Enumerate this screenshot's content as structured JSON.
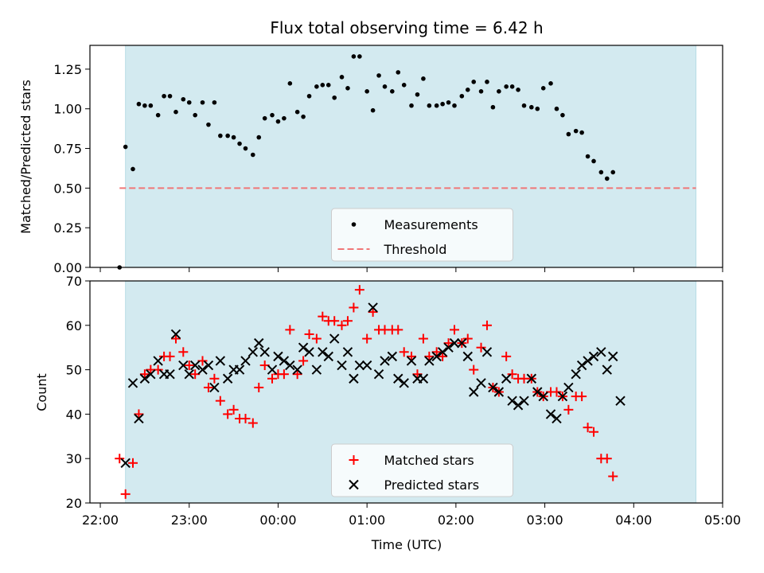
{
  "chart_data": [
    {
      "type": "scatter",
      "title": "Flux total observing time = 6.42 h",
      "xlabel": "",
      "ylabel": "Matched/Predicted stars",
      "xlim": [
        "21:53",
        "05:00"
      ],
      "ylim": [
        0,
        1.4
      ],
      "yticks": [
        0.0,
        0.25,
        0.5,
        0.75,
        1.0,
        1.25
      ],
      "ytick_labels": [
        "0.00",
        "0.25",
        "0.50",
        "0.75",
        "1.00",
        "1.25"
      ],
      "shaded_span": [
        "22:17",
        "04:42"
      ],
      "shaded_color": "#d3eaf0",
      "legend": {
        "placement": "lower-center",
        "entries": [
          "Measurements",
          "Threshold"
        ]
      },
      "threshold": {
        "name": "Threshold",
        "y": 0.5,
        "x_start": "22:13",
        "x_end": "04:42",
        "color": "#f07777"
      },
      "series": [
        {
          "name": "Measurements",
          "marker": "dot",
          "color": "#000000",
          "points": [
            [
              "22:13",
              0.0
            ],
            [
              "22:17",
              0.76
            ],
            [
              "22:22",
              0.62
            ],
            [
              "22:26",
              1.03
            ],
            [
              "22:30",
              1.02
            ],
            [
              "22:34",
              1.02
            ],
            [
              "22:39",
              0.96
            ],
            [
              "22:43",
              1.08
            ],
            [
              "22:47",
              1.08
            ],
            [
              "22:51",
              0.98
            ],
            [
              "22:56",
              1.06
            ],
            [
              "23:00",
              1.04
            ],
            [
              "23:04",
              0.96
            ],
            [
              "23:09",
              1.04
            ],
            [
              "23:13",
              0.9
            ],
            [
              "23:17",
              1.04
            ],
            [
              "23:21",
              0.83
            ],
            [
              "23:26",
              0.83
            ],
            [
              "23:30",
              0.82
            ],
            [
              "23:34",
              0.78
            ],
            [
              "23:38",
              0.75
            ],
            [
              "23:43",
              0.71
            ],
            [
              "23:47",
              0.82
            ],
            [
              "23:51",
              0.94
            ],
            [
              "23:56",
              0.96
            ],
            [
              "00:00",
              0.92
            ],
            [
              "00:04",
              0.94
            ],
            [
              "00:08",
              1.16
            ],
            [
              "00:13",
              0.98
            ],
            [
              "00:17",
              0.95
            ],
            [
              "00:21",
              1.08
            ],
            [
              "00:26",
              1.14
            ],
            [
              "00:30",
              1.15
            ],
            [
              "00:34",
              1.15
            ],
            [
              "00:38",
              1.07
            ],
            [
              "00:43",
              1.2
            ],
            [
              "00:47",
              1.13
            ],
            [
              "00:51",
              1.33
            ],
            [
              "00:55",
              1.33
            ],
            [
              "01:00",
              1.11
            ],
            [
              "01:04",
              0.99
            ],
            [
              "01:08",
              1.21
            ],
            [
              "01:12",
              1.14
            ],
            [
              "01:17",
              1.11
            ],
            [
              "01:21",
              1.23
            ],
            [
              "01:25",
              1.15
            ],
            [
              "01:30",
              1.02
            ],
            [
              "01:34",
              1.09
            ],
            [
              "01:38",
              1.19
            ],
            [
              "01:42",
              1.02
            ],
            [
              "01:47",
              1.02
            ],
            [
              "01:51",
              1.03
            ],
            [
              "01:55",
              1.04
            ],
            [
              "01:59",
              1.02
            ],
            [
              "02:04",
              1.08
            ],
            [
              "02:08",
              1.12
            ],
            [
              "02:12",
              1.17
            ],
            [
              "02:17",
              1.11
            ],
            [
              "02:21",
              1.17
            ],
            [
              "02:25",
              1.01
            ],
            [
              "02:29",
              1.11
            ],
            [
              "02:34",
              1.14
            ],
            [
              "02:38",
              1.14
            ],
            [
              "02:42",
              1.12
            ],
            [
              "02:46",
              1.02
            ],
            [
              "02:51",
              1.01
            ],
            [
              "02:55",
              1.0
            ],
            [
              "02:59",
              1.13
            ],
            [
              "03:04",
              1.16
            ],
            [
              "03:08",
              1.0
            ],
            [
              "03:12",
              0.96
            ],
            [
              "03:16",
              0.84
            ],
            [
              "03:21",
              0.86
            ],
            [
              "03:25",
              0.85
            ],
            [
              "03:29",
              0.7
            ],
            [
              "03:33",
              0.67
            ],
            [
              "03:38",
              0.6
            ],
            [
              "03:42",
              0.56
            ],
            [
              "03:46",
              0.6
            ]
          ]
        }
      ]
    },
    {
      "type": "scatter",
      "title": "",
      "xlabel": "Time (UTC)",
      "ylabel": "Count",
      "xlim": [
        "21:53",
        "05:00"
      ],
      "ylim": [
        20,
        70
      ],
      "yticks": [
        20,
        30,
        40,
        50,
        60,
        70
      ],
      "xticks": [
        "22:00",
        "23:00",
        "00:00",
        "01:00",
        "02:00",
        "03:00",
        "04:00",
        "05:00"
      ],
      "shaded_span": [
        "22:17",
        "04:42"
      ],
      "shaded_color": "#d3eaf0",
      "legend": {
        "placement": "lower-center",
        "entries": [
          "Matched stars",
          "Predicted stars"
        ]
      },
      "series": [
        {
          "name": "Matched stars",
          "marker": "plus",
          "color": "#ff0000",
          "points": [
            [
              "22:13",
              30
            ],
            [
              "22:17",
              22
            ],
            [
              "22:22",
              29
            ],
            [
              "22:26",
              40
            ],
            [
              "22:30",
              49
            ],
            [
              "22:34",
              50
            ],
            [
              "22:39",
              50
            ],
            [
              "22:43",
              53
            ],
            [
              "22:47",
              53
            ],
            [
              "22:51",
              57
            ],
            [
              "22:56",
              54
            ],
            [
              "23:00",
              51
            ],
            [
              "23:04",
              49
            ],
            [
              "23:09",
              52
            ],
            [
              "23:13",
              46
            ],
            [
              "23:17",
              48
            ],
            [
              "23:21",
              43
            ],
            [
              "23:26",
              40
            ],
            [
              "23:30",
              41
            ],
            [
              "23:34",
              39
            ],
            [
              "23:38",
              39
            ],
            [
              "23:43",
              38
            ],
            [
              "23:47",
              46
            ],
            [
              "23:51",
              51
            ],
            [
              "23:56",
              48
            ],
            [
              "00:00",
              49
            ],
            [
              "00:04",
              49
            ],
            [
              "00:08",
              59
            ],
            [
              "00:13",
              49
            ],
            [
              "00:17",
              52
            ],
            [
              "00:21",
              58
            ],
            [
              "00:26",
              57
            ],
            [
              "00:30",
              62
            ],
            [
              "00:34",
              61
            ],
            [
              "00:38",
              61
            ],
            [
              "00:43",
              60
            ],
            [
              "00:47",
              61
            ],
            [
              "00:51",
              64
            ],
            [
              "00:55",
              68
            ],
            [
              "01:00",
              57
            ],
            [
              "01:04",
              63
            ],
            [
              "01:08",
              59
            ],
            [
              "01:12",
              59
            ],
            [
              "01:17",
              59
            ],
            [
              "01:21",
              59
            ],
            [
              "01:25",
              54
            ],
            [
              "01:30",
              53
            ],
            [
              "01:34",
              49
            ],
            [
              "01:38",
              57
            ],
            [
              "01:42",
              53
            ],
            [
              "01:47",
              54
            ],
            [
              "01:51",
              53
            ],
            [
              "01:55",
              56
            ],
            [
              "01:59",
              59
            ],
            [
              "02:04",
              56
            ],
            [
              "02:08",
              57
            ],
            [
              "02:12",
              50
            ],
            [
              "02:17",
              55
            ],
            [
              "02:21",
              60
            ],
            [
              "02:25",
              46
            ],
            [
              "02:29",
              45
            ],
            [
              "02:34",
              53
            ],
            [
              "02:38",
              49
            ],
            [
              "02:42",
              48
            ],
            [
              "02:46",
              48
            ],
            [
              "02:51",
              48
            ],
            [
              "02:55",
              45
            ],
            [
              "02:59",
              44
            ],
            [
              "03:04",
              45
            ],
            [
              "03:08",
              45
            ],
            [
              "03:12",
              44
            ],
            [
              "03:16",
              41
            ],
            [
              "03:21",
              44
            ],
            [
              "03:25",
              44
            ],
            [
              "03:29",
              37
            ],
            [
              "03:33",
              36
            ],
            [
              "03:38",
              30
            ],
            [
              "03:42",
              30
            ],
            [
              "03:46",
              26
            ]
          ]
        },
        {
          "name": "Predicted stars",
          "marker": "x",
          "color": "#000000",
          "points": [
            [
              "22:17",
              29
            ],
            [
              "22:22",
              47
            ],
            [
              "22:26",
              39
            ],
            [
              "22:30",
              48
            ],
            [
              "22:34",
              49
            ],
            [
              "22:39",
              52
            ],
            [
              "22:43",
              49
            ],
            [
              "22:47",
              49
            ],
            [
              "22:51",
              58
            ],
            [
              "22:56",
              51
            ],
            [
              "23:00",
              49
            ],
            [
              "23:04",
              51
            ],
            [
              "23:09",
              50
            ],
            [
              "23:13",
              51
            ],
            [
              "23:17",
              46
            ],
            [
              "23:21",
              52
            ],
            [
              "23:26",
              48
            ],
            [
              "23:30",
              50
            ],
            [
              "23:34",
              50
            ],
            [
              "23:38",
              52
            ],
            [
              "23:43",
              54
            ],
            [
              "23:47",
              56
            ],
            [
              "23:51",
              54
            ],
            [
              "23:56",
              50
            ],
            [
              "00:00",
              53
            ],
            [
              "00:04",
              52
            ],
            [
              "00:08",
              51
            ],
            [
              "00:13",
              50
            ],
            [
              "00:17",
              55
            ],
            [
              "00:21",
              54
            ],
            [
              "00:26",
              50
            ],
            [
              "00:30",
              54
            ],
            [
              "00:34",
              53
            ],
            [
              "00:38",
              57
            ],
            [
              "00:43",
              51
            ],
            [
              "00:47",
              54
            ],
            [
              "00:51",
              48
            ],
            [
              "00:55",
              51
            ],
            [
              "01:00",
              51
            ],
            [
              "01:04",
              64
            ],
            [
              "01:08",
              49
            ],
            [
              "01:12",
              52
            ],
            [
              "01:17",
              53
            ],
            [
              "01:21",
              48
            ],
            [
              "01:25",
              47
            ],
            [
              "01:30",
              52
            ],
            [
              "01:34",
              48
            ],
            [
              "01:38",
              48
            ],
            [
              "01:42",
              52
            ],
            [
              "01:47",
              53
            ],
            [
              "01:51",
              54
            ],
            [
              "01:55",
              55
            ],
            [
              "01:59",
              56
            ],
            [
              "02:04",
              56
            ],
            [
              "02:08",
              53
            ],
            [
              "02:12",
              45
            ],
            [
              "02:17",
              47
            ],
            [
              "02:21",
              54
            ],
            [
              "02:25",
              46
            ],
            [
              "02:29",
              45
            ],
            [
              "02:34",
              48
            ],
            [
              "02:38",
              43
            ],
            [
              "02:42",
              42
            ],
            [
              "02:46",
              43
            ],
            [
              "02:51",
              48
            ],
            [
              "02:55",
              45
            ],
            [
              "02:59",
              44
            ],
            [
              "03:04",
              40
            ],
            [
              "03:08",
              39
            ],
            [
              "03:12",
              44
            ],
            [
              "03:16",
              46
            ],
            [
              "03:21",
              49
            ],
            [
              "03:25",
              51
            ],
            [
              "03:29",
              52
            ],
            [
              "03:33",
              53
            ],
            [
              "03:38",
              54
            ],
            [
              "03:42",
              50
            ],
            [
              "03:46",
              53
            ],
            [
              "03:51",
              43
            ]
          ]
        }
      ]
    }
  ]
}
